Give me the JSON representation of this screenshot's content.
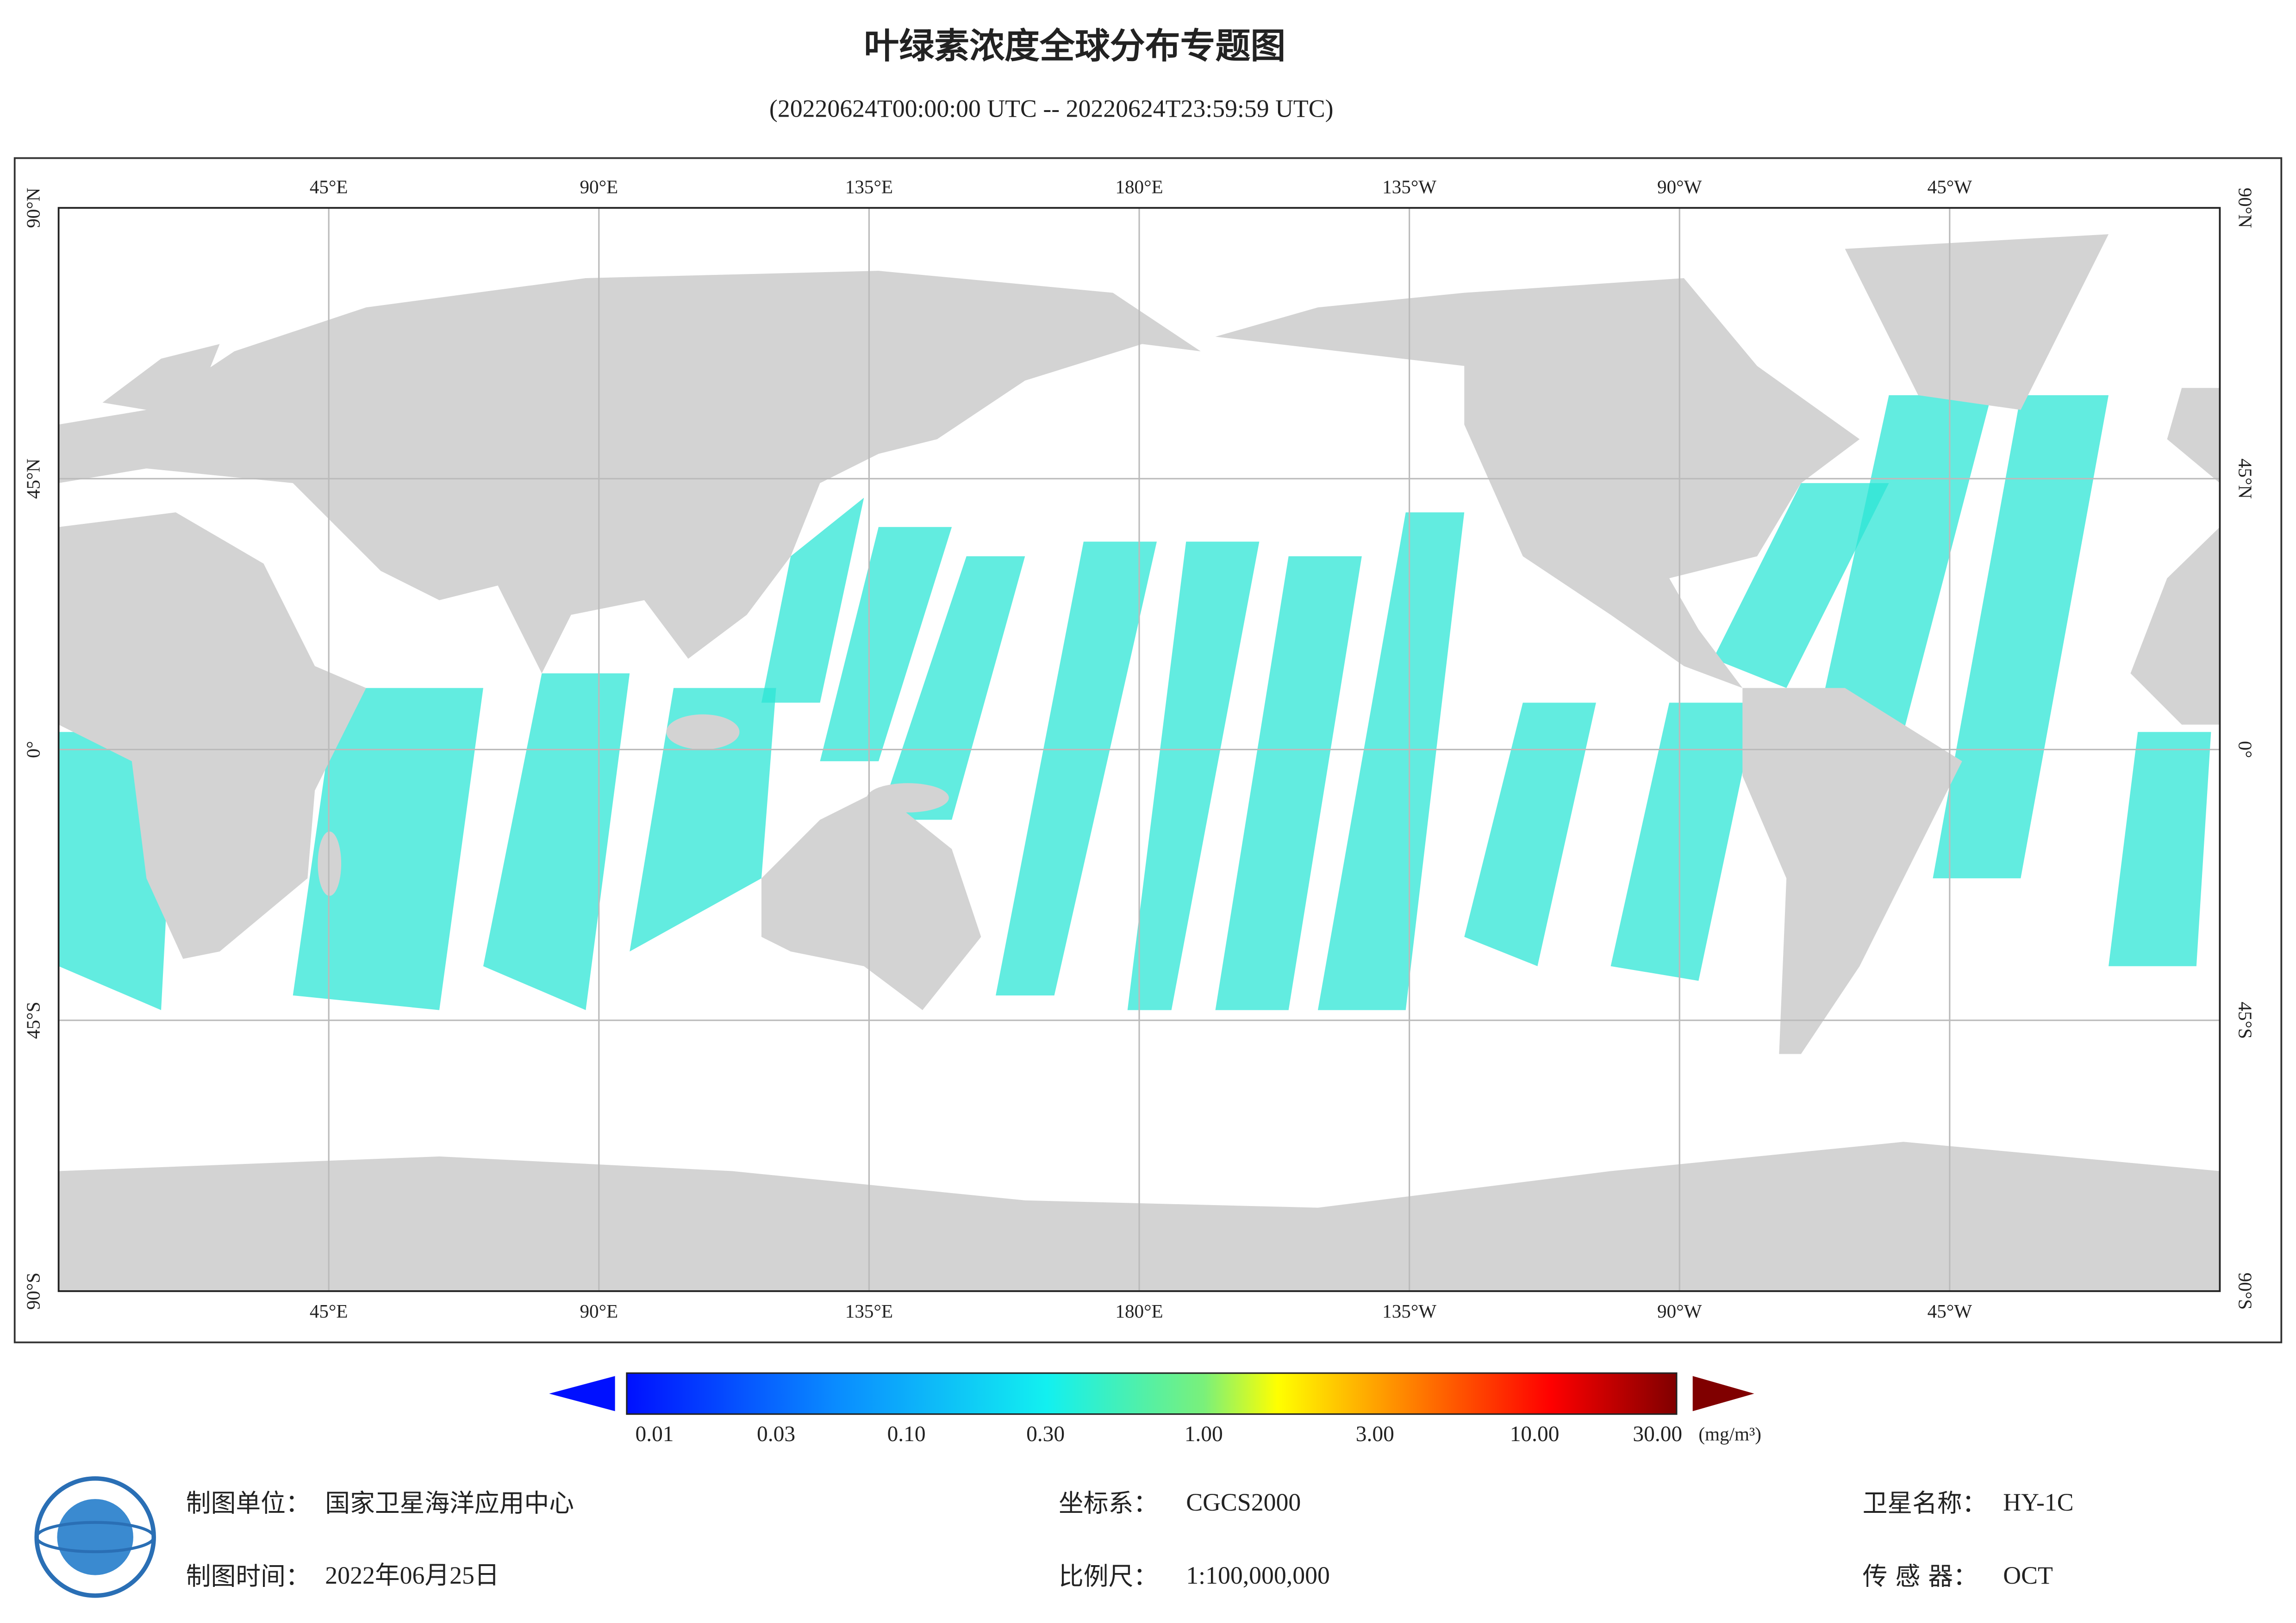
{
  "header": {
    "title": "叶绿素浓度全球分布专题图",
    "subtitle": "(20220624T00:00:00 UTC -- 20220624T23:59:59 UTC)"
  },
  "map": {
    "lon_labels": [
      "45°E",
      "90°E",
      "135°E",
      "180°E",
      "135°W",
      "90°W",
      "45°W"
    ],
    "lat_labels": [
      "90°N",
      "45°N",
      "0°",
      "45°S",
      "90°S"
    ]
  },
  "colorbar": {
    "ticks": [
      "0.01",
      "0.03",
      "0.10",
      "0.30",
      "1.00",
      "3.00",
      "10.00",
      "30.00"
    ],
    "unit": "(mg/m³)"
  },
  "footer": {
    "unit_label": "制图单位：",
    "unit_value": "国家卫星海洋应用中心",
    "time_label": "制图时间：",
    "time_value": "2022年06月25日",
    "crs_label": "坐标系：",
    "crs_value": "CGCS2000",
    "scale_label": "比例尺：",
    "scale_value": "1:100,000,000",
    "satellite_label": "卫星名称：",
    "satellite_value": "HY-1C",
    "sensor_label": "传 感 器：",
    "sensor_value": "OCT"
  }
}
